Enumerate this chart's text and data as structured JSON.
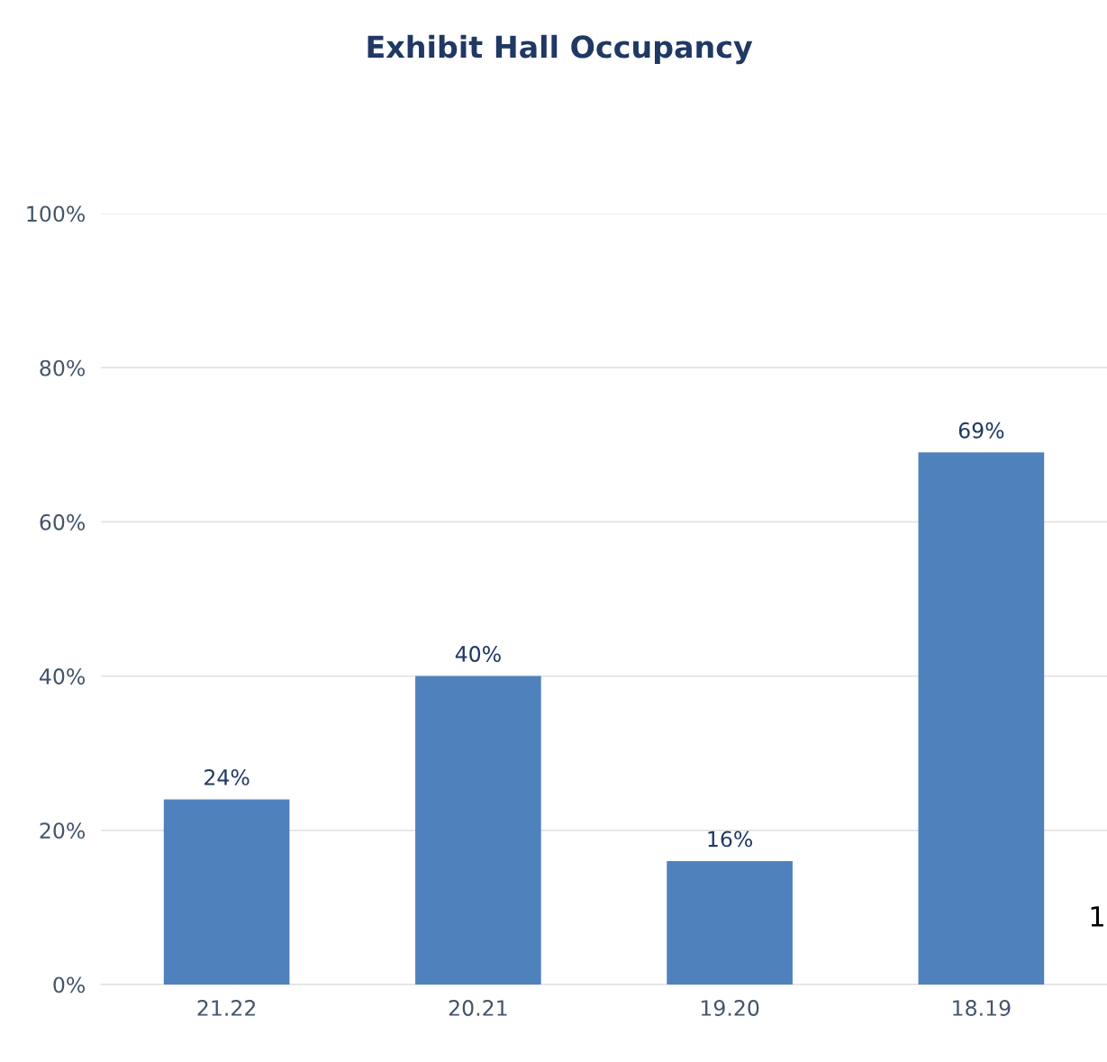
{
  "chart_data": {
    "type": "bar",
    "title": "Exhibit Hall Occupancy",
    "categories": [
      "21.22",
      "20.21",
      "19.20",
      "18.19"
    ],
    "values": [
      24,
      40,
      16,
      69
    ],
    "color": "#4f81bd",
    "value_labels": [
      "24%",
      "40%",
      "16%",
      "69%"
    ],
    "ylim": [
      0,
      100
    ],
    "yticks": [
      {
        "value": 0,
        "label": "0%"
      },
      {
        "value": 20,
        "label": "20%"
      },
      {
        "value": 40,
        "label": "40%"
      },
      {
        "value": 60,
        "label": "60%"
      },
      {
        "value": 80,
        "label": "80%"
      },
      {
        "value": 100,
        "label": "100%"
      }
    ],
    "grid": "y",
    "legend": false,
    "annotations": [
      "1"
    ]
  }
}
